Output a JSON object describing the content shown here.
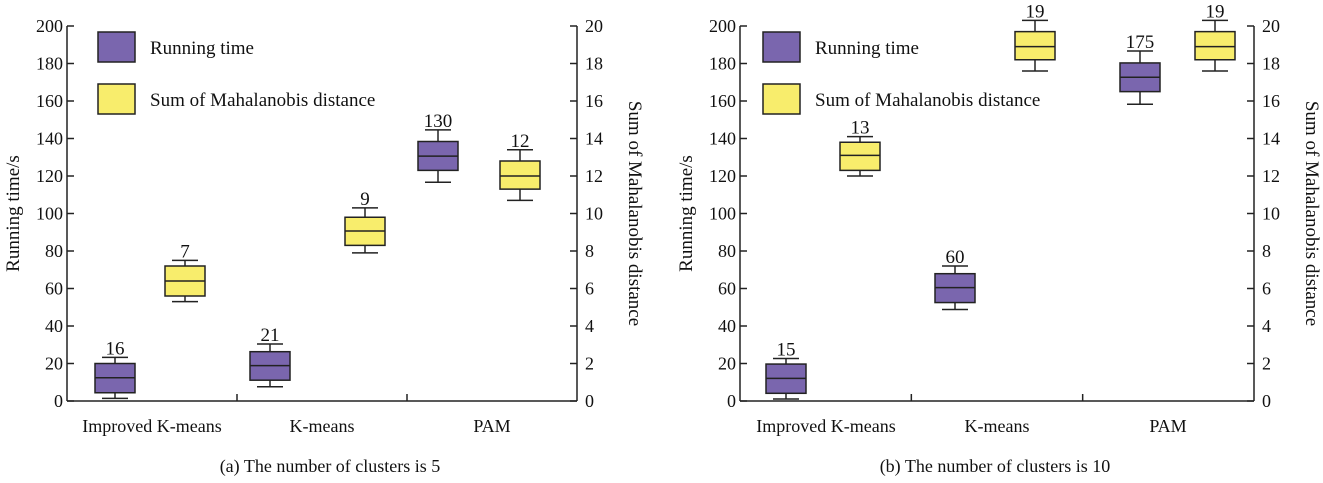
{
  "colors": {
    "running_time": "#7a66ae",
    "mahalanobis": "#f8ed6c",
    "stroke": "#222222"
  },
  "chart_data": [
    {
      "type": "box",
      "caption": "(a) The number of clusters is 5",
      "ylabel": "Running time/s",
      "y2label": "Sum of Mahalanobis distance",
      "ylim": [
        0,
        200
      ],
      "y2lim": [
        0,
        20
      ],
      "yticks": [
        "0",
        "20",
        "40",
        "60",
        "80",
        "100",
        "120",
        "140",
        "160",
        "180",
        "200"
      ],
      "y2ticks": [
        "0",
        "2",
        "4",
        "6",
        "8",
        "10",
        "12",
        "14",
        "16",
        "18",
        "20"
      ],
      "categories": [
        "Improved K-means",
        "K-means",
        "PAM"
      ],
      "legend": {
        "position": "top-left",
        "entries": [
          "Running time",
          "Sum of Mahalanobis distance"
        ]
      },
      "series": [
        {
          "name": "Running time",
          "axis": "left",
          "boxes": [
            {
              "min": 1.4,
              "q1": 4.4,
              "median": 12.4,
              "q3": 20,
              "max": 23.3,
              "label": "16"
            },
            {
              "min": 7.6,
              "q1": 11.1,
              "median": 18.9,
              "q3": 26.3,
              "max": 30.4,
              "label": "21"
            },
            {
              "min": 116.7,
              "q1": 123,
              "median": 130.6,
              "q3": 138.4,
              "max": 144.6,
              "label": "130"
            }
          ]
        },
        {
          "name": "Sum of Mahalanobis distance",
          "axis": "right",
          "boxes": [
            {
              "min": 5.3,
              "q1": 5.6,
              "median": 6.4,
              "q3": 7.2,
              "max": 7.5,
              "label": "7"
            },
            {
              "min": 7.9,
              "q1": 8.3,
              "median": 9.07,
              "q3": 9.8,
              "max": 10.3,
              "label": "9"
            },
            {
              "min": 10.7,
              "q1": 11.3,
              "median": 12.0,
              "q3": 12.8,
              "max": 13.4,
              "label": "12"
            }
          ]
        }
      ]
    },
    {
      "type": "box",
      "caption": "(b) The number of clusters is 10",
      "ylabel": "Running time/s",
      "y2label": "Sum of Mahalanobis distance",
      "ylim": [
        0,
        200
      ],
      "y2lim": [
        0,
        20
      ],
      "yticks": [
        "0",
        "20",
        "40",
        "60",
        "80",
        "100",
        "120",
        "140",
        "160",
        "180",
        "200"
      ],
      "y2ticks": [
        "0",
        "2",
        "4",
        "6",
        "8",
        "10",
        "12",
        "14",
        "16",
        "18",
        "20"
      ],
      "categories": [
        "Improved K-means",
        "K-means",
        "PAM"
      ],
      "legend": {
        "position": "top-left",
        "entries": [
          "Running time",
          "Sum of Mahalanobis distance"
        ]
      },
      "series": [
        {
          "name": "Running time",
          "axis": "left",
          "boxes": [
            {
              "min": 1.1,
              "q1": 4.1,
              "median": 12.1,
              "q3": 19.7,
              "max": 22.7,
              "label": "15"
            },
            {
              "min": 48.8,
              "q1": 52.5,
              "median": 60.5,
              "q3": 67.9,
              "max": 72,
              "label": "60"
            },
            {
              "min": 158.3,
              "q1": 165,
              "median": 172.7,
              "q3": 180.3,
              "max": 186.7,
              "label": "175"
            }
          ]
        },
        {
          "name": "Sum of Mahalanobis distance",
          "axis": "right",
          "boxes": [
            {
              "min": 12.0,
              "q1": 12.3,
              "median": 13.1,
              "q3": 13.8,
              "max": 14.1,
              "label": "13"
            },
            {
              "min": 17.6,
              "q1": 18.2,
              "median": 18.9,
              "q3": 19.7,
              "max": 20.3,
              "label": "19"
            },
            {
              "min": 17.6,
              "q1": 18.2,
              "median": 18.9,
              "q3": 19.7,
              "max": 20.3,
              "label": "19"
            }
          ]
        }
      ]
    }
  ]
}
